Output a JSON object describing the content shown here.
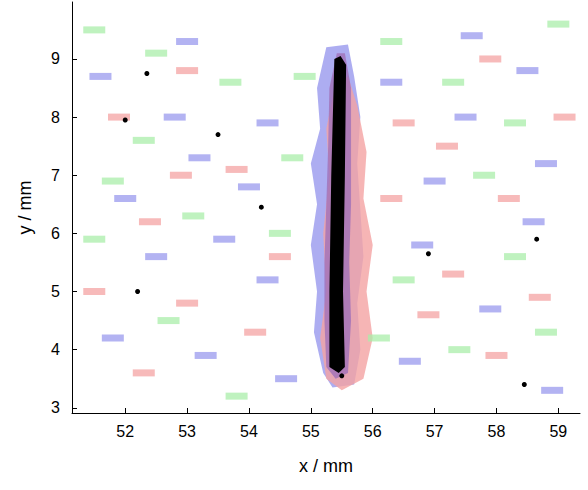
{
  "chart_data": {
    "type": "contour",
    "xlabel": "x / mm",
    "ylabel": "y / mm",
    "xlim": [
      51.14,
      59.35
    ],
    "ylim": [
      2.91,
      9.98
    ],
    "xticks": [
      52,
      53,
      54,
      55,
      56,
      57,
      58,
      59
    ],
    "yticks": [
      3,
      4,
      5,
      6,
      7,
      8,
      9
    ],
    "grid": false,
    "series": [
      {
        "type": "scatter",
        "marker": "rect",
        "color": "#a9eea9",
        "values": [
          [
            51.5,
            9.5
          ],
          [
            52.5,
            9.1
          ],
          [
            53.7,
            8.6
          ],
          [
            52.3,
            7.6
          ],
          [
            51.8,
            6.9
          ],
          [
            54.7,
            7.3
          ],
          [
            53.1,
            6.3
          ],
          [
            54.5,
            6.0
          ],
          [
            51.5,
            5.9
          ],
          [
            52.7,
            4.5
          ],
          [
            53.8,
            3.2
          ],
          [
            56.3,
            9.3
          ],
          [
            57.3,
            8.6
          ],
          [
            58.3,
            7.9
          ],
          [
            57.8,
            7.0
          ],
          [
            56.5,
            5.2
          ],
          [
            58.3,
            5.6
          ],
          [
            57.4,
            4.0
          ],
          [
            58.8,
            4.3
          ],
          [
            56.1,
            4.2
          ],
          [
            59.0,
            9.6
          ],
          [
            54.9,
            8.7
          ]
        ]
      },
      {
        "type": "scatter",
        "marker": "rect",
        "color": "#f4a3a3",
        "values": [
          [
            51.9,
            8.0
          ],
          [
            53.0,
            8.8
          ],
          [
            53.8,
            7.1
          ],
          [
            52.4,
            6.2
          ],
          [
            51.5,
            5.0
          ],
          [
            53.0,
            4.8
          ],
          [
            54.1,
            4.3
          ],
          [
            52.3,
            3.6
          ],
          [
            56.5,
            7.9
          ],
          [
            57.2,
            7.5
          ],
          [
            58.2,
            6.6
          ],
          [
            57.3,
            5.3
          ],
          [
            56.9,
            4.6
          ],
          [
            58.7,
            4.9
          ],
          [
            56.3,
            6.6
          ],
          [
            58.0,
            3.9
          ],
          [
            57.9,
            9.0
          ],
          [
            54.5,
            5.6
          ],
          [
            52.9,
            7.0
          ],
          [
            59.1,
            8.0
          ]
        ]
      },
      {
        "type": "scatter",
        "marker": "rect",
        "color": "#9999ee",
        "values": [
          [
            51.6,
            8.7
          ],
          [
            52.8,
            8.0
          ],
          [
            53.2,
            7.3
          ],
          [
            54.3,
            7.9
          ],
          [
            54.0,
            6.8
          ],
          [
            53.6,
            5.9
          ],
          [
            52.5,
            5.6
          ],
          [
            54.3,
            5.2
          ],
          [
            51.8,
            4.2
          ],
          [
            53.3,
            3.9
          ],
          [
            56.3,
            8.6
          ],
          [
            57.5,
            8.0
          ],
          [
            58.5,
            8.8
          ],
          [
            57.0,
            6.9
          ],
          [
            56.8,
            5.8
          ],
          [
            58.6,
            6.2
          ],
          [
            57.9,
            4.7
          ],
          [
            56.6,
            3.8
          ],
          [
            58.9,
            3.3
          ],
          [
            54.6,
            3.5
          ],
          [
            52.0,
            6.6
          ],
          [
            53.0,
            9.3
          ],
          [
            57.6,
            9.4
          ],
          [
            58.8,
            7.2
          ]
        ]
      },
      {
        "type": "area",
        "color": "#9999ee",
        "values": [
          [
            55.25,
            9.2
          ],
          [
            55.1,
            8.5
          ],
          [
            55.15,
            7.8
          ],
          [
            55.0,
            7.2
          ],
          [
            55.1,
            6.5
          ],
          [
            55.0,
            5.8
          ],
          [
            55.1,
            5.0
          ],
          [
            55.05,
            4.3
          ],
          [
            55.2,
            3.6
          ],
          [
            55.35,
            3.35
          ],
          [
            55.7,
            3.4
          ],
          [
            55.8,
            4.0
          ],
          [
            55.75,
            4.8
          ],
          [
            55.85,
            5.6
          ],
          [
            55.8,
            6.4
          ],
          [
            55.75,
            7.2
          ],
          [
            55.8,
            8.0
          ],
          [
            55.7,
            8.7
          ],
          [
            55.6,
            9.25
          ]
        ]
      },
      {
        "type": "area",
        "color": "#f4a3a3",
        "values": [
          [
            55.4,
            8.6
          ],
          [
            55.25,
            7.8
          ],
          [
            55.3,
            7.0
          ],
          [
            55.2,
            6.0
          ],
          [
            55.25,
            5.0
          ],
          [
            55.15,
            4.2
          ],
          [
            55.25,
            3.5
          ],
          [
            55.5,
            3.3
          ],
          [
            55.85,
            3.5
          ],
          [
            56.0,
            4.2
          ],
          [
            55.9,
            5.0
          ],
          [
            56.0,
            5.8
          ],
          [
            55.85,
            6.6
          ],
          [
            55.9,
            7.4
          ],
          [
            55.75,
            8.2
          ],
          [
            55.6,
            8.7
          ]
        ]
      },
      {
        "type": "area",
        "color": "#a070b8",
        "values": [
          [
            55.42,
            9.1
          ],
          [
            55.3,
            8.5
          ],
          [
            55.28,
            7.5
          ],
          [
            55.25,
            6.5
          ],
          [
            55.22,
            5.5
          ],
          [
            55.22,
            4.5
          ],
          [
            55.25,
            3.7
          ],
          [
            55.4,
            3.5
          ],
          [
            55.6,
            3.6
          ],
          [
            55.65,
            4.5
          ],
          [
            55.62,
            5.5
          ],
          [
            55.65,
            6.5
          ],
          [
            55.65,
            7.5
          ],
          [
            55.65,
            8.5
          ],
          [
            55.55,
            9.1
          ]
        ]
      },
      {
        "type": "area",
        "color": "#000000",
        "values": [
          [
            55.38,
            9.0
          ],
          [
            55.33,
            7.0
          ],
          [
            55.3,
            5.0
          ],
          [
            55.3,
            3.7
          ],
          [
            55.45,
            3.6
          ],
          [
            55.55,
            3.7
          ],
          [
            55.52,
            5.0
          ],
          [
            55.55,
            7.0
          ],
          [
            55.57,
            8.9
          ],
          [
            55.48,
            9.05
          ]
        ]
      },
      {
        "type": "scatter",
        "marker": "circle",
        "color": "#000000",
        "values": [
          [
            52.35,
            8.75
          ],
          [
            52.0,
            7.95
          ],
          [
            53.5,
            7.7
          ],
          [
            54.2,
            6.45
          ],
          [
            52.2,
            5.0
          ],
          [
            56.9,
            5.65
          ],
          [
            58.65,
            5.9
          ],
          [
            58.45,
            3.4
          ],
          [
            55.5,
            3.55
          ]
        ]
      }
    ]
  }
}
